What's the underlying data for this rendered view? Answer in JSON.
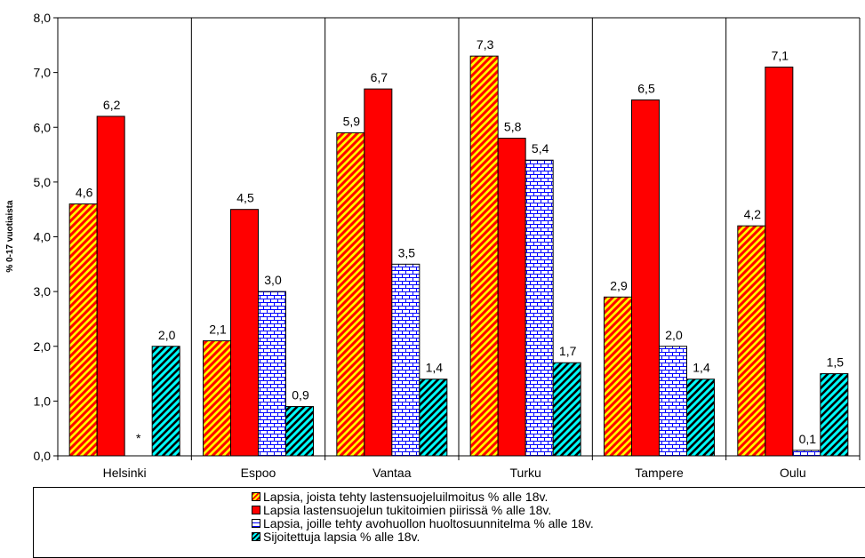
{
  "chart_data": {
    "type": "bar",
    "ylabel": "% 0-17 vuotiaista",
    "ylim": [
      0,
      8
    ],
    "ytick_step": 1,
    "ytick_labels": [
      "0,0",
      "1,0",
      "2,0",
      "3,0",
      "4,0",
      "5,0",
      "6,0",
      "7,0",
      "8,0"
    ],
    "grid": "vertical separators between categories",
    "legend_position": "bottom",
    "categories": [
      "Helsinki",
      "Espoo",
      "Vantaa",
      "Turku",
      "Tampere",
      "Oulu"
    ],
    "series": [
      {
        "name": "Lapsia, joista tehty lastensuojeluilmoitus % alle 18v.",
        "pattern": "diagonal-stripes",
        "colors": [
          "#ff0000",
          "#ffff00"
        ],
        "values": [
          4.6,
          2.1,
          5.9,
          7.3,
          2.9,
          4.2
        ],
        "labels": [
          "4,6",
          "2,1",
          "5,9",
          "7,3",
          "2,9",
          "4,2"
        ]
      },
      {
        "name": "Lapsia lastensuojelun tukitoimien piirissä % alle 18v.",
        "pattern": "solid",
        "colors": [
          "#ff0000"
        ],
        "values": [
          6.2,
          4.5,
          6.7,
          5.8,
          6.5,
          7.1
        ],
        "labels": [
          "6,2",
          "4,5",
          "6,7",
          "5,8",
          "6,5",
          "7,1"
        ]
      },
      {
        "name": "Lapsia, joille tehty avohuollon huoltosuunnitelma % alle 18v.",
        "pattern": "bricks",
        "colors": [
          "#0000ff",
          "#ffffff"
        ],
        "values": [
          null,
          3.0,
          3.5,
          5.4,
          2.0,
          0.1
        ],
        "labels": [
          "*",
          "3,0",
          "3,5",
          "5,4",
          "2,0",
          "0,1"
        ]
      },
      {
        "name": "Sijoitettuja lapsia % alle 18v.",
        "pattern": "diagonal-stripes",
        "colors": [
          "#00ffff",
          "#000000"
        ],
        "values": [
          2.0,
          0.9,
          1.4,
          1.7,
          1.4,
          1.5
        ],
        "labels": [
          "2,0",
          "0,9",
          "1,4",
          "1,7",
          "1,4",
          "1,5"
        ]
      }
    ]
  }
}
